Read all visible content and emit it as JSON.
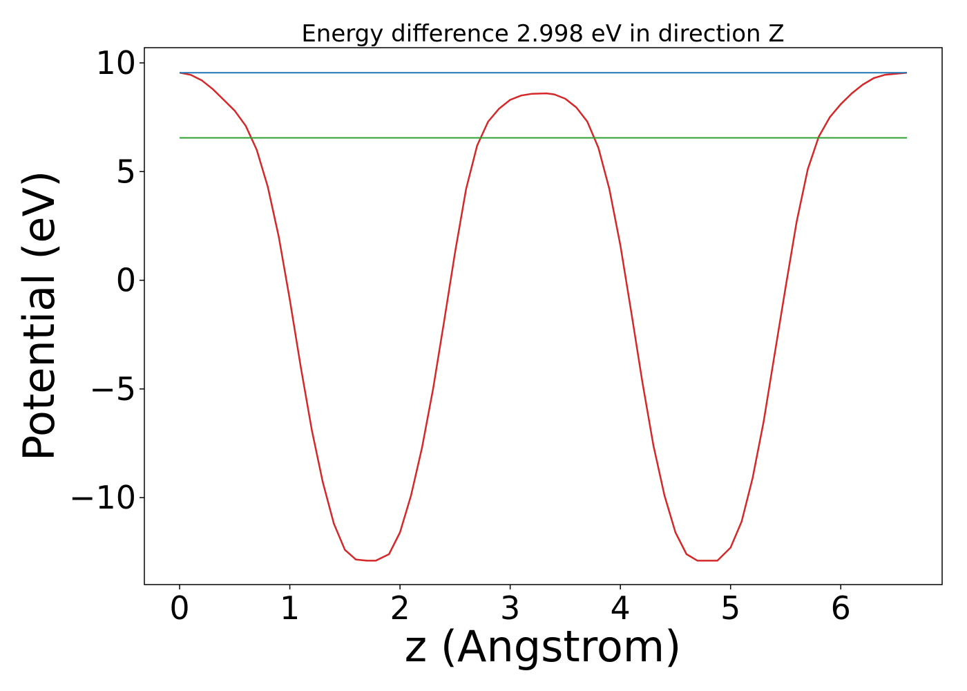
{
  "chart_data": {
    "type": "line",
    "title": "Energy difference 2.998 eV in direction Z",
    "xlabel": "z (Angstrom)",
    "ylabel": "Potential (eV)",
    "xlim": [
      -0.32,
      6.92
    ],
    "ylim": [
      -14.0,
      10.7
    ],
    "xticks": [
      0,
      1,
      2,
      3,
      4,
      5,
      6
    ],
    "xtick_labels": [
      "0",
      "1",
      "2",
      "3",
      "4",
      "5",
      "6"
    ],
    "yticks": [
      10,
      5,
      0,
      -5,
      -10
    ],
    "ytick_labels": [
      "10",
      "5",
      "0",
      "−5",
      "−10"
    ],
    "grid": false,
    "series": [
      {
        "color": "#d62728",
        "x": [
          0,
          0.1,
          0.2,
          0.3,
          0.4,
          0.5,
          0.6,
          0.7,
          0.8,
          0.9,
          1.0,
          1.1,
          1.2,
          1.3,
          1.4,
          1.5,
          1.6,
          1.7,
          1.78,
          1.9,
          2.0,
          2.1,
          2.2,
          2.3,
          2.4,
          2.5,
          2.6,
          2.7,
          2.8,
          2.9,
          3.0,
          3.1,
          3.2,
          3.33,
          3.4,
          3.5,
          3.6,
          3.7,
          3.8,
          3.9,
          4.0,
          4.1,
          4.2,
          4.3,
          4.4,
          4.5,
          4.6,
          4.7,
          4.8,
          4.88,
          5.0,
          5.1,
          5.2,
          5.3,
          5.4,
          5.5,
          5.6,
          5.7,
          5.8,
          5.9,
          6.0,
          6.1,
          6.2,
          6.3,
          6.4,
          6.5,
          6.6
        ],
        "y": [
          9.55,
          9.45,
          9.2,
          8.8,
          8.3,
          7.8,
          7.1,
          6.0,
          4.3,
          2.0,
          -0.9,
          -4.0,
          -6.9,
          -9.3,
          -11.2,
          -12.4,
          -12.85,
          -12.9,
          -12.9,
          -12.6,
          -11.6,
          -9.9,
          -7.7,
          -5.0,
          -1.9,
          1.3,
          4.2,
          6.2,
          7.3,
          7.9,
          8.3,
          8.5,
          8.58,
          8.6,
          8.55,
          8.35,
          7.95,
          7.3,
          6.1,
          4.2,
          1.6,
          -1.5,
          -4.7,
          -7.6,
          -9.9,
          -11.6,
          -12.6,
          -12.9,
          -12.9,
          -12.9,
          -12.3,
          -11.1,
          -9.1,
          -6.5,
          -3.4,
          -0.3,
          2.7,
          5.1,
          6.6,
          7.5,
          8.1,
          8.6,
          9.0,
          9.3,
          9.45,
          9.5,
          9.55
        ]
      },
      {
        "color": "#1f77b4",
        "x": [
          0,
          6.6
        ],
        "y": [
          9.55,
          9.55
        ]
      },
      {
        "color": "#2ca02c",
        "x": [
          0,
          6.6
        ],
        "y": [
          6.55,
          6.55
        ]
      }
    ]
  }
}
